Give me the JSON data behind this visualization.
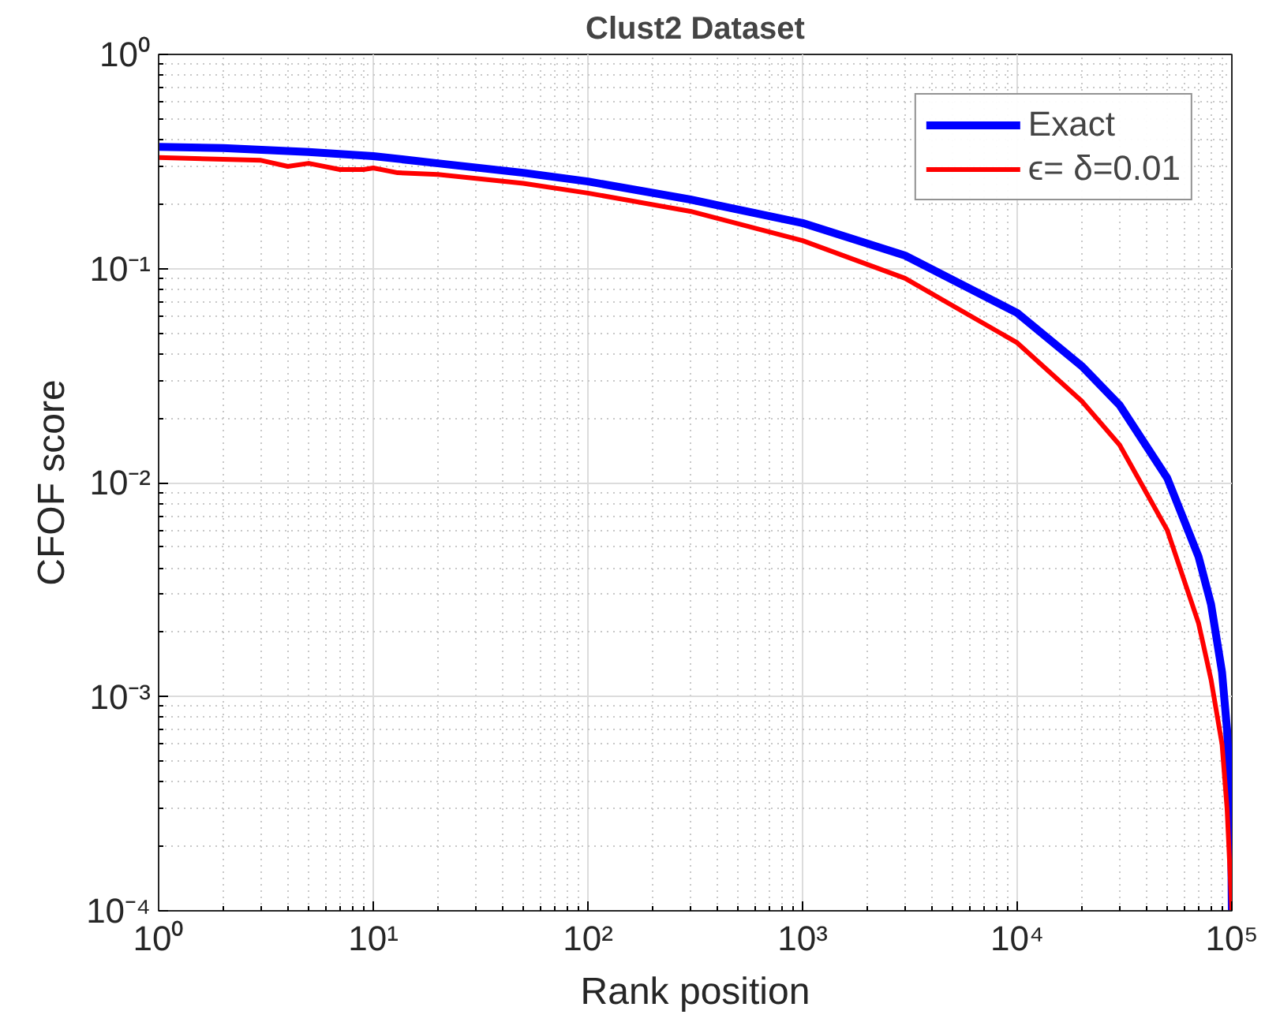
{
  "chart_data": {
    "type": "line",
    "title": "Clust2 Dataset",
    "xlabel": "Rank position",
    "ylabel": "CFOF score",
    "log": "xy",
    "grid": true,
    "legend": "top right",
    "line_style": "solid",
    "marker": "none",
    "xlim": [
      1,
      100000
    ],
    "ylim": [
      0.0001,
      1
    ],
    "xticks": [
      {
        "value": 1,
        "label": "10⁰"
      },
      {
        "value": 10,
        "label": "10¹"
      },
      {
        "value": 100,
        "label": "10²"
      },
      {
        "value": 1000,
        "label": "10³"
      },
      {
        "value": 10000,
        "label": "10⁴"
      },
      {
        "value": 100000,
        "label": "10⁵"
      }
    ],
    "yticks": [
      {
        "value": 0.0001,
        "label": "10⁻⁴"
      },
      {
        "value": 0.001,
        "label": "10⁻³"
      },
      {
        "value": 0.01,
        "label": "10⁻²"
      },
      {
        "value": 0.1,
        "label": "10⁻¹"
      },
      {
        "value": 1,
        "label": "10⁰"
      }
    ],
    "series": [
      {
        "name": "Exact",
        "color": "#0000ff",
        "x": [
          1,
          2,
          5,
          10,
          20,
          50,
          100,
          300,
          1000,
          3000,
          10000,
          20000,
          30000,
          50000,
          70000,
          80000,
          90000,
          95000,
          99000,
          100000
        ],
        "values": [
          0.37,
          0.365,
          0.35,
          0.335,
          0.31,
          0.28,
          0.255,
          0.21,
          0.163,
          0.115,
          0.062,
          0.035,
          0.023,
          0.0105,
          0.0045,
          0.0027,
          0.0013,
          0.0007,
          0.0003,
          0.0001
        ]
      },
      {
        "name": "ϵ= δ=0.01",
        "color": "#ff0000",
        "x": [
          1,
          3,
          4,
          5,
          7,
          9,
          10,
          13,
          20,
          50,
          100,
          300,
          1000,
          3000,
          10000,
          20000,
          30000,
          50000,
          70000,
          80000,
          90000,
          95000,
          100000
        ],
        "values": [
          0.33,
          0.32,
          0.3,
          0.31,
          0.29,
          0.29,
          0.295,
          0.28,
          0.275,
          0.25,
          0.225,
          0.185,
          0.135,
          0.09,
          0.045,
          0.024,
          0.015,
          0.006,
          0.0022,
          0.0012,
          0.0006,
          0.0003,
          0.0001
        ]
      }
    ]
  }
}
